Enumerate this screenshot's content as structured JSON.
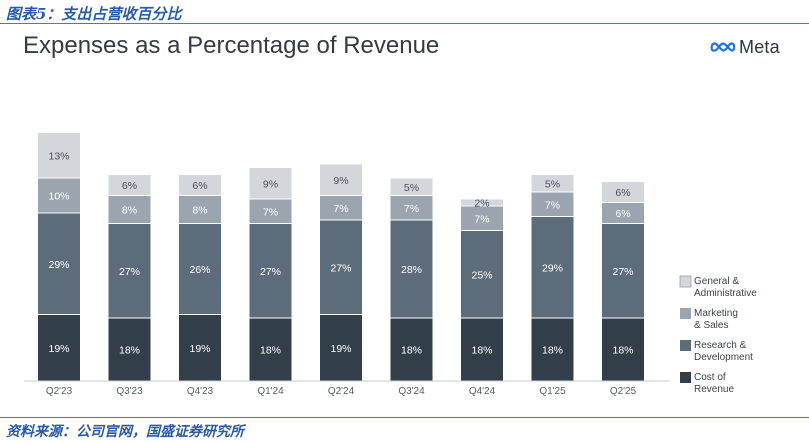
{
  "header": {
    "caption": "图表5：支出占营收百分比",
    "source": "资料来源：公司官网，国盛证券研究所",
    "logo_text": "Meta"
  },
  "colors": {
    "cost_of_revenue": "#323f4b",
    "research_development": "#5d6c7b",
    "marketing_sales": "#9aa5b0",
    "general_administrative": "#d3d6da",
    "axis": "#c7ccd1"
  },
  "chart_data": {
    "type": "bar",
    "stacked": true,
    "title": "Expenses as a Percentage of Revenue",
    "xlabel": "",
    "ylabel": "",
    "categories": [
      "Q2'23",
      "Q3'23",
      "Q4'23",
      "Q1'24",
      "Q2'24",
      "Q3'24",
      "Q4'24",
      "Q1'25",
      "Q2'25"
    ],
    "series": [
      {
        "name": "Cost of Revenue",
        "key": "cost_of_revenue",
        "values": [
          19,
          18,
          19,
          18,
          19,
          18,
          18,
          18,
          18
        ]
      },
      {
        "name": "Research & Development",
        "key": "research_development",
        "values": [
          29,
          27,
          26,
          27,
          27,
          28,
          25,
          29,
          27
        ]
      },
      {
        "name": "Marketing & Sales",
        "key": "marketing_sales",
        "values": [
          10,
          8,
          8,
          7,
          7,
          7,
          7,
          7,
          6
        ]
      },
      {
        "name": "General & Administrative",
        "key": "general_administrative",
        "values": [
          13,
          6,
          6,
          9,
          9,
          5,
          2,
          5,
          6
        ]
      }
    ],
    "legend": [
      {
        "key": "general_administrative",
        "line1": "General &",
        "line2": "Administrative"
      },
      {
        "key": "marketing_sales",
        "line1": "Marketing",
        "line2": "& Sales"
      },
      {
        "key": "research_development",
        "line1": "Research &",
        "line2": "Development"
      },
      {
        "key": "cost_of_revenue",
        "line1": "Cost of",
        "line2": "Revenue"
      }
    ],
    "legend_position": "right",
    "value_suffix": "%",
    "ylim": [
      0,
      75
    ],
    "grid": false
  }
}
